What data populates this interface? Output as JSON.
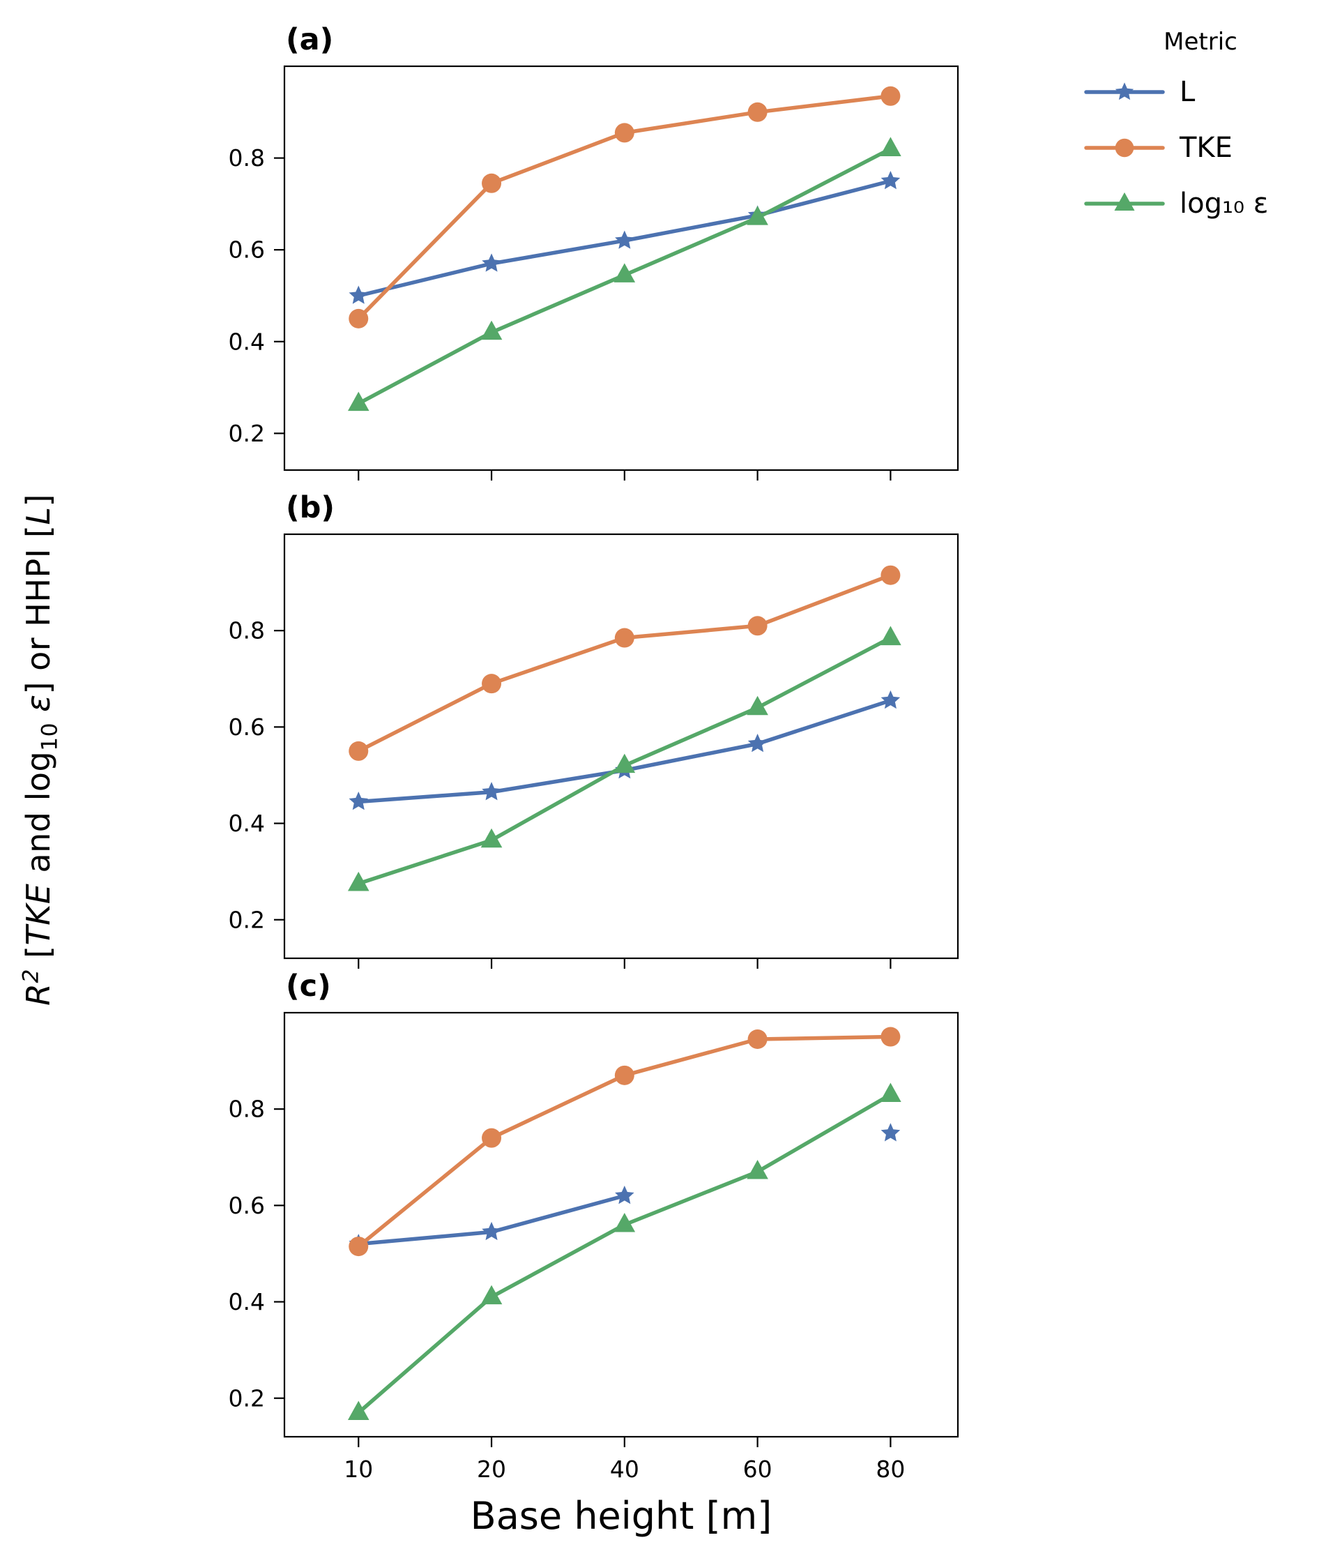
{
  "chart_data": {
    "type": "line",
    "x_categories": [
      "10",
      "20",
      "40",
      "60",
      "80"
    ],
    "xlabel": "Base height [m]",
    "ylabel_parts": [
      "R",
      "2",
      " [",
      "TKE",
      " and log",
      "10",
      " ε",
      "] or HHPI [",
      "L",
      "]"
    ],
    "yticks": [
      0.2,
      0.4,
      0.6,
      0.8
    ],
    "ylim": [
      0.12,
      1.0
    ],
    "grid": false,
    "legend_title": "Metric",
    "legend_position": "upper right, outside axes",
    "series_meta": [
      {
        "name": "L",
        "color": "#4C72B0",
        "marker": "star"
      },
      {
        "name": "TKE",
        "color": "#DD8452",
        "marker": "circle"
      },
      {
        "name": "log₁₀ ε",
        "color": "#55A868",
        "marker": "triangle"
      }
    ],
    "panels": [
      {
        "label": "(a)",
        "values": [
          [
            0.5,
            0.57,
            0.62,
            0.675,
            0.75
          ],
          [
            0.45,
            0.745,
            0.855,
            0.9,
            0.935
          ],
          [
            0.265,
            0.42,
            0.545,
            0.67,
            0.82
          ]
        ]
      },
      {
        "label": "(b)",
        "values": [
          [
            0.445,
            0.465,
            0.51,
            0.565,
            0.655
          ],
          [
            0.55,
            0.69,
            0.785,
            0.81,
            0.915
          ],
          [
            0.275,
            0.365,
            0.52,
            0.64,
            0.785
          ]
        ]
      },
      {
        "label": "(c)",
        "values": [
          [
            0.52,
            0.545,
            0.62,
            null,
            0.75
          ],
          [
            0.515,
            0.74,
            0.87,
            0.945,
            0.95
          ],
          [
            0.17,
            0.41,
            0.56,
            0.67,
            0.83
          ]
        ]
      }
    ]
  }
}
